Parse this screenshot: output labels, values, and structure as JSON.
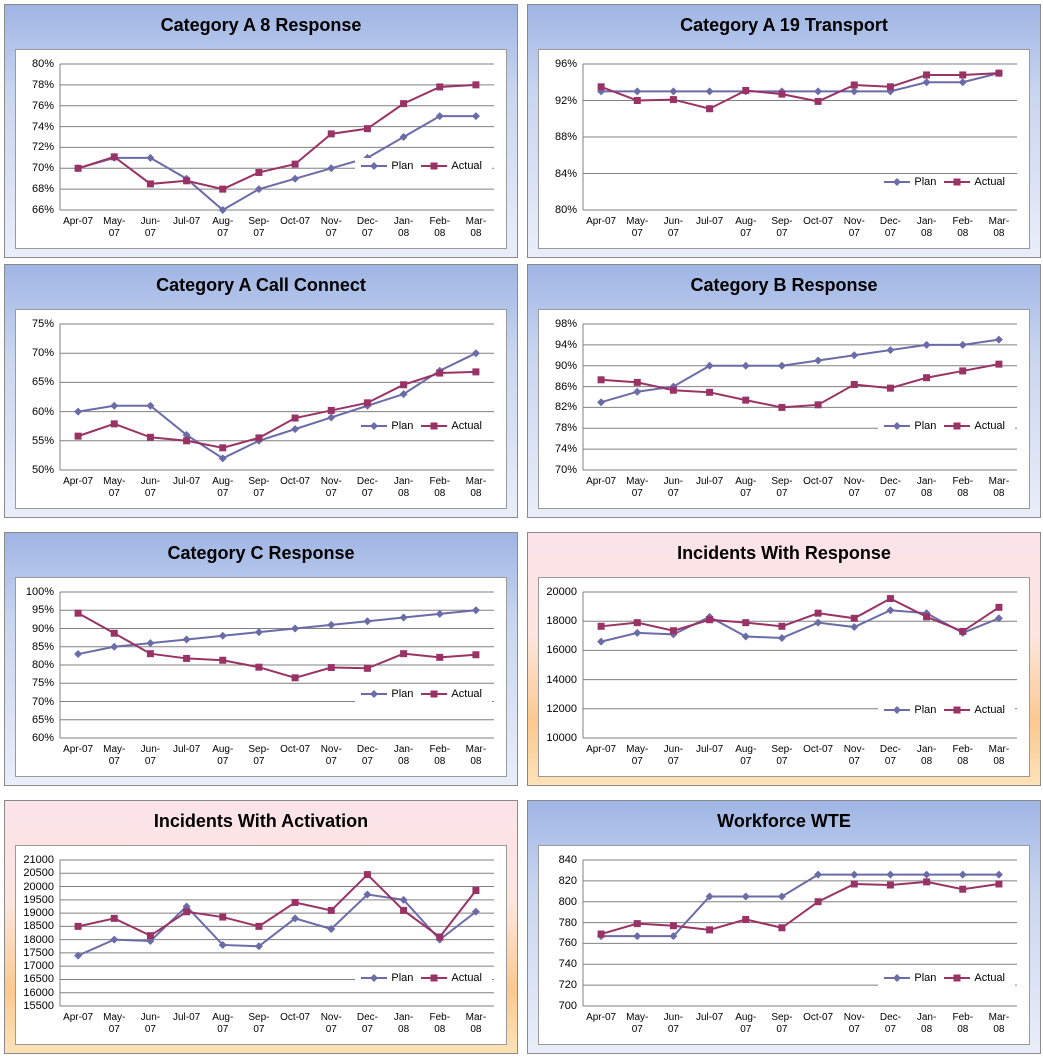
{
  "chart_data": [
    {
      "type": "line",
      "title": "Category A 8 Response",
      "categories": [
        "Apr-07",
        "May-07",
        "Jun-07",
        "Jul-07",
        "Aug-07",
        "Sep-07",
        "Oct-07",
        "Nov-07",
        "Dec-07",
        "Jan-08",
        "Feb-08",
        "Mar-08"
      ],
      "series": [
        {
          "name": "Plan",
          "color": "#6b6ba8",
          "marker": "diamond",
          "values": [
            70,
            71,
            71,
            69,
            66,
            68,
            69,
            70,
            71,
            73,
            75,
            75
          ]
        },
        {
          "name": "Actual",
          "color": "#993366",
          "marker": "square",
          "values": [
            70,
            71.1,
            68.5,
            68.8,
            68,
            69.6,
            70.4,
            73.3,
            73.8,
            76.2,
            77.8,
            78
          ]
        }
      ],
      "ylim": [
        66,
        80
      ],
      "yticks": [
        {
          "value": 66,
          "label": "66%"
        },
        {
          "value": 68,
          "label": "68%"
        },
        {
          "value": 70,
          "label": "70%"
        },
        {
          "value": 72,
          "label": "72%"
        },
        {
          "value": 74,
          "label": "74%"
        },
        {
          "value": 76,
          "label": "76%"
        },
        {
          "value": 78,
          "label": "78%"
        },
        {
          "value": 80,
          "label": "80%"
        }
      ],
      "grid": true,
      "legend": "right"
    },
    {
      "type": "line",
      "title": "Category A 19 Transport",
      "categories": [
        "Apr-07",
        "May-07",
        "Jun-07",
        "Jul-07",
        "Aug-07",
        "Sep-07",
        "Oct-07",
        "Nov-07",
        "Dec-07",
        "Jan-08",
        "Feb-08",
        "Mar-08"
      ],
      "series": [
        {
          "name": "Plan",
          "color": "#6b6ba8",
          "marker": "diamond",
          "values": [
            93,
            93,
            93,
            93,
            93,
            93,
            93,
            93,
            93,
            94,
            94,
            95
          ]
        },
        {
          "name": "Actual",
          "color": "#993366",
          "marker": "square",
          "values": [
            93.5,
            92,
            92.1,
            91.1,
            93.1,
            92.7,
            91.9,
            93.7,
            93.5,
            94.8,
            94.8,
            95
          ]
        }
      ],
      "ylim": [
        80,
        96
      ],
      "yticks": [
        {
          "value": 80,
          "label": "80%"
        },
        {
          "value": 84,
          "label": "84%"
        },
        {
          "value": 88,
          "label": "88%"
        },
        {
          "value": 92,
          "label": "92%"
        },
        {
          "value": 96,
          "label": "96%"
        }
      ],
      "grid": true,
      "legend": "bottom-right"
    },
    {
      "type": "line",
      "title": "Category A Call Connect",
      "categories": [
        "Apr-07",
        "May-07",
        "Jun-07",
        "Jul-07",
        "Aug-07",
        "Sep-07",
        "Oct-07",
        "Nov-07",
        "Dec-07",
        "Jan-08",
        "Feb-08",
        "Mar-08"
      ],
      "series": [
        {
          "name": "Plan",
          "color": "#6b6ba8",
          "marker": "diamond",
          "values": [
            60,
            61,
            61,
            56,
            52,
            55,
            57,
            59,
            61,
            63,
            67,
            70
          ]
        },
        {
          "name": "Actual",
          "color": "#993366",
          "marker": "square",
          "values": [
            55.8,
            57.9,
            55.6,
            55,
            53.8,
            55.5,
            58.9,
            60.2,
            61.5,
            64.6,
            66.6,
            66.8
          ]
        }
      ],
      "ylim": [
        50,
        75
      ],
      "yticks": [
        {
          "value": 50,
          "label": "50%"
        },
        {
          "value": 55,
          "label": "55%"
        },
        {
          "value": 60,
          "label": "60%"
        },
        {
          "value": 65,
          "label": "65%"
        },
        {
          "value": 70,
          "label": "70%"
        },
        {
          "value": 75,
          "label": "75%"
        }
      ],
      "grid": true,
      "legend": "right"
    },
    {
      "type": "line",
      "title": "Category B Response",
      "categories": [
        "Apr-07",
        "May-07",
        "Jun-07",
        "Jul-07",
        "Aug-07",
        "Sep-07",
        "Oct-07",
        "Nov-07",
        "Dec-07",
        "Jan-08",
        "Feb-08",
        "Mar-08"
      ],
      "series": [
        {
          "name": "Plan",
          "color": "#6b6ba8",
          "marker": "diamond",
          "values": [
            83,
            85,
            86,
            90,
            90,
            90,
            91,
            92,
            93,
            94,
            94,
            95
          ]
        },
        {
          "name": "Actual",
          "color": "#993366",
          "marker": "square",
          "values": [
            87.3,
            86.8,
            85.3,
            84.9,
            83.4,
            82,
            82.5,
            86.4,
            85.7,
            87.7,
            89,
            90.3
          ]
        }
      ],
      "ylim": [
        70,
        98
      ],
      "yticks": [
        {
          "value": 70,
          "label": "70%"
        },
        {
          "value": 74,
          "label": "74%"
        },
        {
          "value": 78,
          "label": "78%"
        },
        {
          "value": 82,
          "label": "82%"
        },
        {
          "value": 86,
          "label": "86%"
        },
        {
          "value": 90,
          "label": "90%"
        },
        {
          "value": 94,
          "label": "94%"
        },
        {
          "value": 98,
          "label": "98%"
        }
      ],
      "grid": true,
      "legend": "right"
    },
    {
      "type": "line",
      "title": "Category C Response",
      "categories": [
        "Apr-07",
        "May-07",
        "Jun-07",
        "Jul-07",
        "Aug-07",
        "Sep-07",
        "Oct-07",
        "Nov-07",
        "Dec-07",
        "Jan-08",
        "Feb-08",
        "Mar-08"
      ],
      "series": [
        {
          "name": "Plan",
          "color": "#6b6ba8",
          "marker": "diamond",
          "values": [
            83,
            85,
            86,
            87,
            88,
            89,
            90,
            91,
            92,
            93,
            94,
            95
          ]
        },
        {
          "name": "Actual",
          "color": "#993366",
          "marker": "square",
          "values": [
            94.2,
            88.7,
            83.1,
            81.8,
            81.3,
            79.4,
            76.5,
            79.3,
            79.1,
            83.1,
            82.1,
            82.8
          ]
        }
      ],
      "ylim": [
        60,
        100
      ],
      "yticks": [
        {
          "value": 60,
          "label": "60%"
        },
        {
          "value": 65,
          "label": "65%"
        },
        {
          "value": 70,
          "label": "70%"
        },
        {
          "value": 75,
          "label": "75%"
        },
        {
          "value": 80,
          "label": "80%"
        },
        {
          "value": 85,
          "label": "85%"
        },
        {
          "value": 90,
          "label": "90%"
        },
        {
          "value": 95,
          "label": "95%"
        },
        {
          "value": 100,
          "label": "100%"
        }
      ],
      "grid": true,
      "legend": "right"
    },
    {
      "type": "line",
      "title": "Incidents With Response",
      "categories": [
        "Apr-07",
        "May-07",
        "Jun-07",
        "Jul-07",
        "Aug-07",
        "Sep-07",
        "Oct-07",
        "Nov-07",
        "Dec-07",
        "Jan-08",
        "Feb-08",
        "Mar-08"
      ],
      "series": [
        {
          "name": "Plan",
          "color": "#6b6ba8",
          "marker": "diamond",
          "values": [
            16600,
            17200,
            17100,
            18300,
            16950,
            16850,
            17900,
            17600,
            18750,
            18550,
            17200,
            18200
          ]
        },
        {
          "name": "Actual",
          "color": "#993366",
          "marker": "square",
          "values": [
            17650,
            17900,
            17350,
            18100,
            17900,
            17650,
            18550,
            18200,
            19550,
            18300,
            17300,
            18950
          ]
        }
      ],
      "ylim": [
        10000,
        20000
      ],
      "yticks": [
        10000,
        12000,
        14000,
        16000,
        18000,
        20000
      ],
      "grid": true,
      "legend": "bottom-right"
    },
    {
      "type": "line",
      "title": "Incidents With Activation",
      "categories": [
        "Apr-07",
        "May-07",
        "Jun-07",
        "Jul-07",
        "Aug-07",
        "Sep-07",
        "Oct-07",
        "Nov-07",
        "Dec-07",
        "Jan-08",
        "Feb-08",
        "Mar-08"
      ],
      "series": [
        {
          "name": "Plan",
          "color": "#6b6ba8",
          "marker": "diamond",
          "values": [
            17400,
            18000,
            17950,
            19250,
            17800,
            17750,
            18800,
            18400,
            19700,
            19500,
            18000,
            19050
          ]
        },
        {
          "name": "Actual",
          "color": "#993366",
          "marker": "square",
          "values": [
            18500,
            18800,
            18150,
            19050,
            18850,
            18500,
            19400,
            19100,
            20450,
            19100,
            18100,
            19850
          ]
        }
      ],
      "ylim": [
        15500,
        21000
      ],
      "yticks": [
        15500,
        16000,
        16500,
        17000,
        17500,
        18000,
        18500,
        19000,
        19500,
        20000,
        20500,
        21000
      ],
      "grid": true,
      "legend": "bottom-right"
    },
    {
      "type": "line",
      "title": "Workforce WTE",
      "categories": [
        "Apr-07",
        "May-07",
        "Jun-07",
        "Jul-07",
        "Aug-07",
        "Sep-07",
        "Oct-07",
        "Nov-07",
        "Dec-07",
        "Jan-08",
        "Feb-08",
        "Mar-08"
      ],
      "series": [
        {
          "name": "Plan",
          "color": "#6b6ba8",
          "marker": "diamond",
          "values": [
            767,
            767,
            767,
            805,
            805,
            805,
            826,
            826,
            826,
            826,
            826,
            826
          ]
        },
        {
          "name": "Actual",
          "color": "#993366",
          "marker": "square",
          "values": [
            769,
            779,
            777,
            773,
            783,
            775,
            800,
            817,
            816,
            819,
            812,
            817
          ]
        }
      ],
      "ylim": [
        700,
        840
      ],
      "yticks": [
        700,
        720,
        740,
        760,
        780,
        800,
        820,
        840
      ],
      "grid": true,
      "legend": "bottom-right"
    }
  ]
}
